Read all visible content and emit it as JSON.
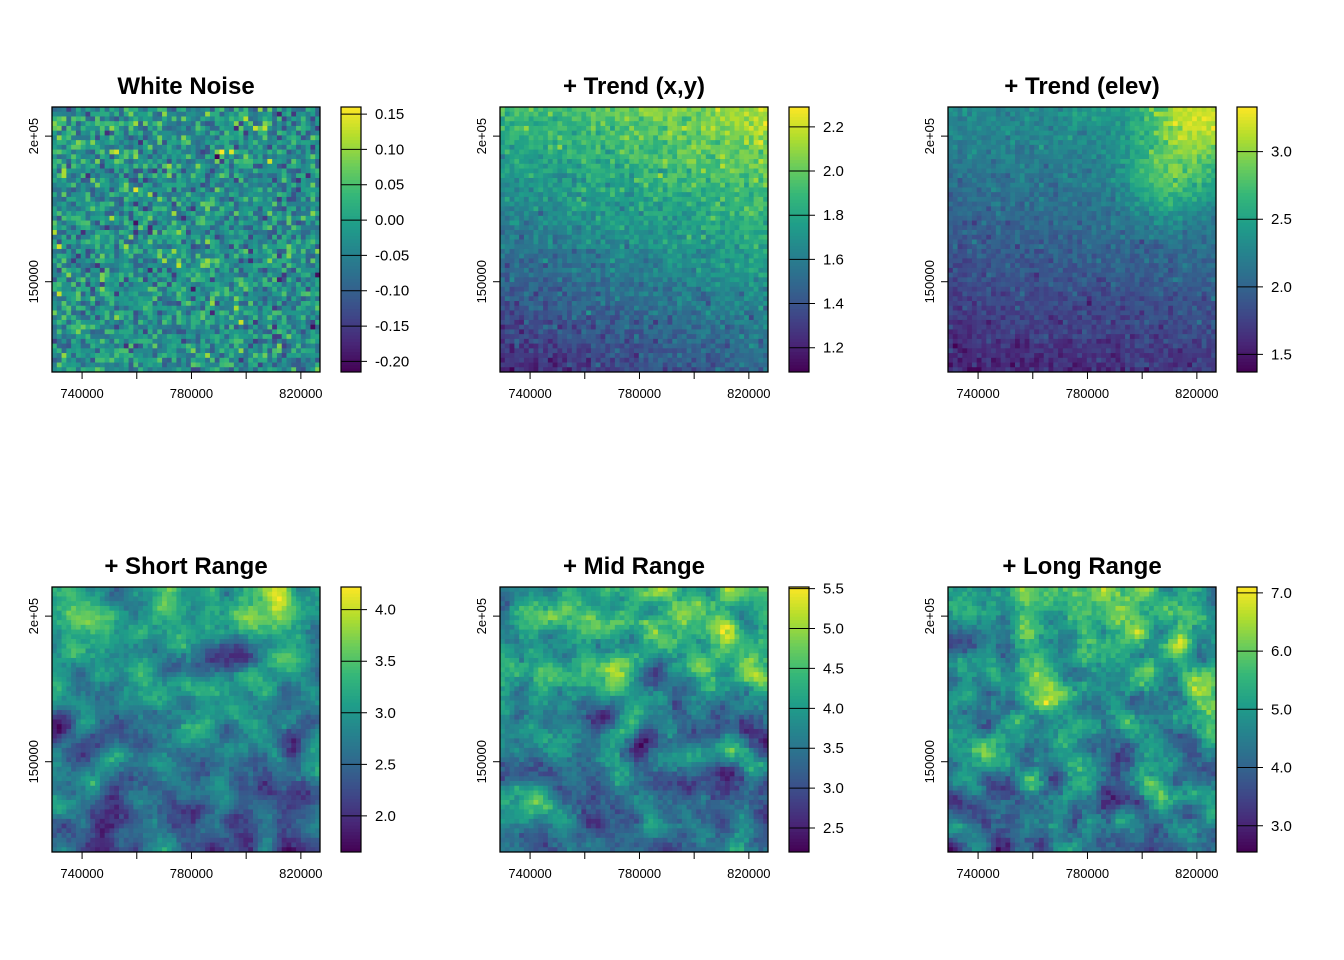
{
  "chart_data": [
    {
      "type": "heatmap",
      "title": "White Noise",
      "xlim": [
        729000,
        827000
      ],
      "ylim": [
        119000,
        210000
      ],
      "x_ticks": [
        740000,
        780000,
        820000
      ],
      "x_tick_labels": [
        "740000",
        "780000",
        "820000"
      ],
      "x_minor_ticks": [
        760000,
        800000
      ],
      "y_ticks": [
        150000,
        200000
      ],
      "y_tick_labels": [
        "150000",
        "2e+05"
      ],
      "colorbar_range": [
        -0.215,
        0.16
      ],
      "colorbar_ticks": [
        0.15,
        0.1,
        0.05,
        0.0,
        -0.05,
        -0.1,
        -0.15,
        -0.2
      ],
      "colorbar_tick_labels": [
        "0.15",
        "0.10",
        "0.05",
        "0.00",
        "-0.05",
        "-0.10",
        "-0.15",
        "-0.20"
      ],
      "colormap": "viridis",
      "field": {
        "kind": "noise",
        "noise": 1.0,
        "seed": 11
      }
    },
    {
      "type": "heatmap",
      "title": "+ Trend (x,y)",
      "xlim": [
        729000,
        827000
      ],
      "ylim": [
        119000,
        210000
      ],
      "x_ticks": [
        740000,
        780000,
        820000
      ],
      "x_tick_labels": [
        "740000",
        "780000",
        "820000"
      ],
      "x_minor_ticks": [
        760000,
        800000
      ],
      "y_ticks": [
        150000,
        200000
      ],
      "y_tick_labels": [
        "150000",
        "2e+05"
      ],
      "colorbar_range": [
        1.09,
        2.29
      ],
      "colorbar_ticks": [
        2.2,
        2.0,
        1.8,
        1.6,
        1.4,
        1.2
      ],
      "colorbar_tick_labels": [
        "2.2",
        "2.0",
        "1.8",
        "1.6",
        "1.4",
        "1.2"
      ],
      "colormap": "viridis",
      "field": {
        "kind": "trend",
        "low_value": 1.15,
        "high_value": 2.25,
        "gradient": "bottom-left to top-right",
        "noise": 0.07,
        "seed": 23
      }
    },
    {
      "type": "heatmap",
      "title": "+ Trend (elev)",
      "xlim": [
        729000,
        827000
      ],
      "ylim": [
        119000,
        210000
      ],
      "x_ticks": [
        740000,
        780000,
        820000
      ],
      "x_tick_labels": [
        "740000",
        "780000",
        "820000"
      ],
      "x_minor_ticks": [
        760000,
        800000
      ],
      "y_ticks": [
        150000,
        200000
      ],
      "y_tick_labels": [
        "150000",
        "2e+05"
      ],
      "colorbar_range": [
        1.37,
        3.33
      ],
      "colorbar_ticks": [
        3.0,
        2.5,
        2.0,
        1.5
      ],
      "colorbar_tick_labels": [
        "3.0",
        "2.5",
        "2.0",
        "1.5"
      ],
      "colormap": "viridis",
      "field": {
        "kind": "elev",
        "low_value": 1.45,
        "high_value": 3.25,
        "hotspot": "top-right",
        "noise": 0.06,
        "seed": 37
      }
    },
    {
      "type": "heatmap",
      "title": "+ Short Range",
      "xlim": [
        729000,
        827000
      ],
      "ylim": [
        119000,
        210000
      ],
      "x_ticks": [
        740000,
        780000,
        820000
      ],
      "x_tick_labels": [
        "740000",
        "780000",
        "820000"
      ],
      "x_minor_ticks": [
        760000,
        800000
      ],
      "y_ticks": [
        150000,
        200000
      ],
      "y_tick_labels": [
        "150000",
        "2e+05"
      ],
      "colorbar_range": [
        1.65,
        4.22
      ],
      "colorbar_ticks": [
        4.0,
        3.5,
        3.0,
        2.5,
        2.0
      ],
      "colorbar_tick_labels": [
        "4.0",
        "3.5",
        "3.0",
        "2.5",
        "2.0"
      ],
      "colormap": "viridis",
      "field": {
        "kind": "clustered",
        "hotspots": [
          [
            742000,
            200000
          ],
          [
            812000,
            201000
          ],
          [
            820000,
            185000
          ],
          [
            766000,
            175000
          ]
        ],
        "noise": 0.18,
        "seed": 51
      }
    },
    {
      "type": "heatmap",
      "title": "+ Mid Range",
      "xlim": [
        729000,
        827000
      ],
      "ylim": [
        119000,
        210000
      ],
      "x_ticks": [
        740000,
        780000,
        820000
      ],
      "x_tick_labels": [
        "740000",
        "780000",
        "820000"
      ],
      "x_minor_ticks": [
        760000,
        800000
      ],
      "y_ticks": [
        150000,
        200000
      ],
      "y_tick_labels": [
        "150000",
        "2e+05"
      ],
      "colorbar_range": [
        2.2,
        5.52
      ],
      "colorbar_ticks": [
        5.5,
        5.0,
        4.5,
        4.0,
        3.5,
        3.0,
        2.5
      ],
      "colorbar_tick_labels": [
        "5.5",
        "5.0",
        "4.5",
        "4.0",
        "3.5",
        "3.0",
        "2.5"
      ],
      "colormap": "viridis",
      "field": {
        "kind": "clustered",
        "hotspots": [
          [
            742000,
            200000
          ],
          [
            772000,
            176000
          ],
          [
            822000,
            181000
          ],
          [
            810000,
            197000
          ]
        ],
        "noise": 0.2,
        "seed": 67
      }
    },
    {
      "type": "heatmap",
      "title": "+ Long Range",
      "xlim": [
        729000,
        827000
      ],
      "ylim": [
        119000,
        210000
      ],
      "x_ticks": [
        740000,
        780000,
        820000
      ],
      "x_tick_labels": [
        "740000",
        "780000",
        "820000"
      ],
      "x_minor_ticks": [
        760000,
        800000
      ],
      "y_ticks": [
        150000,
        200000
      ],
      "y_tick_labels": [
        "150000",
        "2e+05"
      ],
      "colorbar_range": [
        2.55,
        7.1
      ],
      "colorbar_ticks": [
        7.0,
        6.0,
        5.0,
        4.0,
        3.0
      ],
      "colorbar_tick_labels": [
        "7.0",
        "6.0",
        "5.0",
        "4.0",
        "3.0"
      ],
      "colormap": "viridis",
      "field": {
        "kind": "clustered",
        "hotspots": [
          [
            768000,
            175000
          ],
          [
            822000,
            175000
          ],
          [
            812000,
            190000
          ]
        ],
        "noise": 0.18,
        "seed": 83
      }
    }
  ]
}
